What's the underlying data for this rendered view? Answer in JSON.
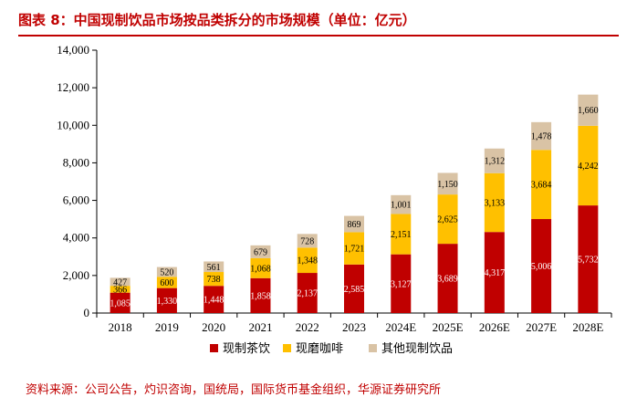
{
  "header": {
    "title": "图表 8：中国现制饮品市场按品类拆分的市场规模（单位：亿元）"
  },
  "footer": {
    "source": "资料来源：公司公告，灼识咨询，国统局，国际货币基金组织，华源证券研究所"
  },
  "chart_data": {
    "type": "stacked-bar",
    "categories": [
      "2018",
      "2019",
      "2020",
      "2021",
      "2022",
      "2023",
      "2024E",
      "2025E",
      "2026E",
      "2027E",
      "2028E"
    ],
    "series": [
      {
        "name": "现制茶饮",
        "color": "#c00000",
        "label_color": "#ffffff",
        "values": [
          1085,
          1330,
          1448,
          1858,
          2137,
          2585,
          3127,
          3689,
          4317,
          5006,
          5732
        ],
        "labels": [
          "1,085",
          "1,330",
          "1,448",
          "1,858",
          "2,137",
          "2,585",
          "3,127",
          "3,689",
          "4,317",
          "5,006",
          "5,732"
        ]
      },
      {
        "name": "现磨咖啡",
        "color": "#ffc000",
        "label_color": "#000000",
        "values": [
          366,
          600,
          738,
          1068,
          1348,
          1721,
          2151,
          2625,
          3133,
          3684,
          4242
        ],
        "labels": [
          "366",
          "600",
          "738",
          "1,068",
          "1,348",
          "1,721",
          "2,151",
          "2,625",
          "3,133",
          "3,684",
          "4,242"
        ]
      },
      {
        "name": "其他现制饮品",
        "color": "#d9c3a5",
        "label_color": "#000000",
        "values": [
          427,
          520,
          561,
          679,
          728,
          869,
          1001,
          1150,
          1312,
          1478,
          1660
        ],
        "labels": [
          "427",
          "520",
          "561",
          "679",
          "728",
          "869",
          "1,001",
          "1,150",
          "1,312",
          "1,478",
          "1,660"
        ]
      }
    ],
    "ylim": [
      0,
      14000
    ],
    "yticks": [
      0,
      2000,
      4000,
      6000,
      8000,
      10000,
      12000,
      14000
    ],
    "ytick_labels": [
      "0",
      "2,000",
      "4,000",
      "6,000",
      "8,000",
      "10,000",
      "12,000",
      "14,000"
    ],
    "legend_position": "bottom",
    "grid": false
  }
}
